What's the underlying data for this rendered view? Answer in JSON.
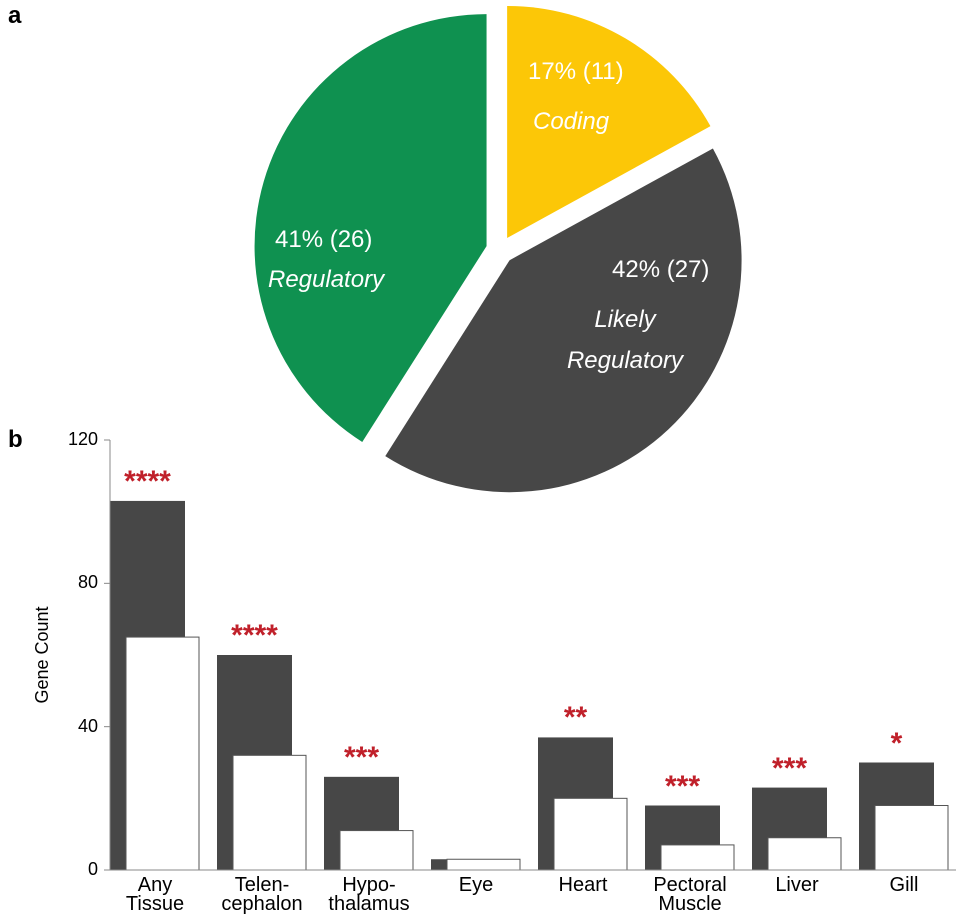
{
  "chart_data": [
    {
      "type": "pie",
      "panel_label": "a",
      "categories": [
        "Coding",
        "Likely\nRegulatory",
        "Regulatory"
      ],
      "values": [
        17,
        42,
        41
      ],
      "value_labels": [
        "17% (11)",
        "42% (27)",
        "41% (26)"
      ],
      "colors": [
        "#fcc707",
        "#474747",
        "#0f9150"
      ]
    },
    {
      "type": "bar",
      "panel_label": "b",
      "ylabel": "Gene Count",
      "categories": [
        "Any\nTissue",
        "Telen-\ncephalon",
        "Hypo-\nthalamus",
        "Eye",
        "Heart",
        "Pectoral\nMuscle",
        "Liver",
        "Gill"
      ],
      "series": [
        {
          "color": "#474747",
          "values": [
            103,
            60,
            26,
            3,
            37,
            18,
            23,
            30
          ]
        },
        {
          "color": "#ffffff",
          "values": [
            65,
            32,
            11,
            3,
            20,
            7,
            9,
            18
          ]
        }
      ],
      "annotations": [
        "****",
        "****",
        "***",
        null,
        "**",
        "***",
        "***",
        "*"
      ],
      "ylim": [
        0,
        120
      ],
      "yticks": [
        0,
        40,
        80,
        120
      ]
    }
  ]
}
